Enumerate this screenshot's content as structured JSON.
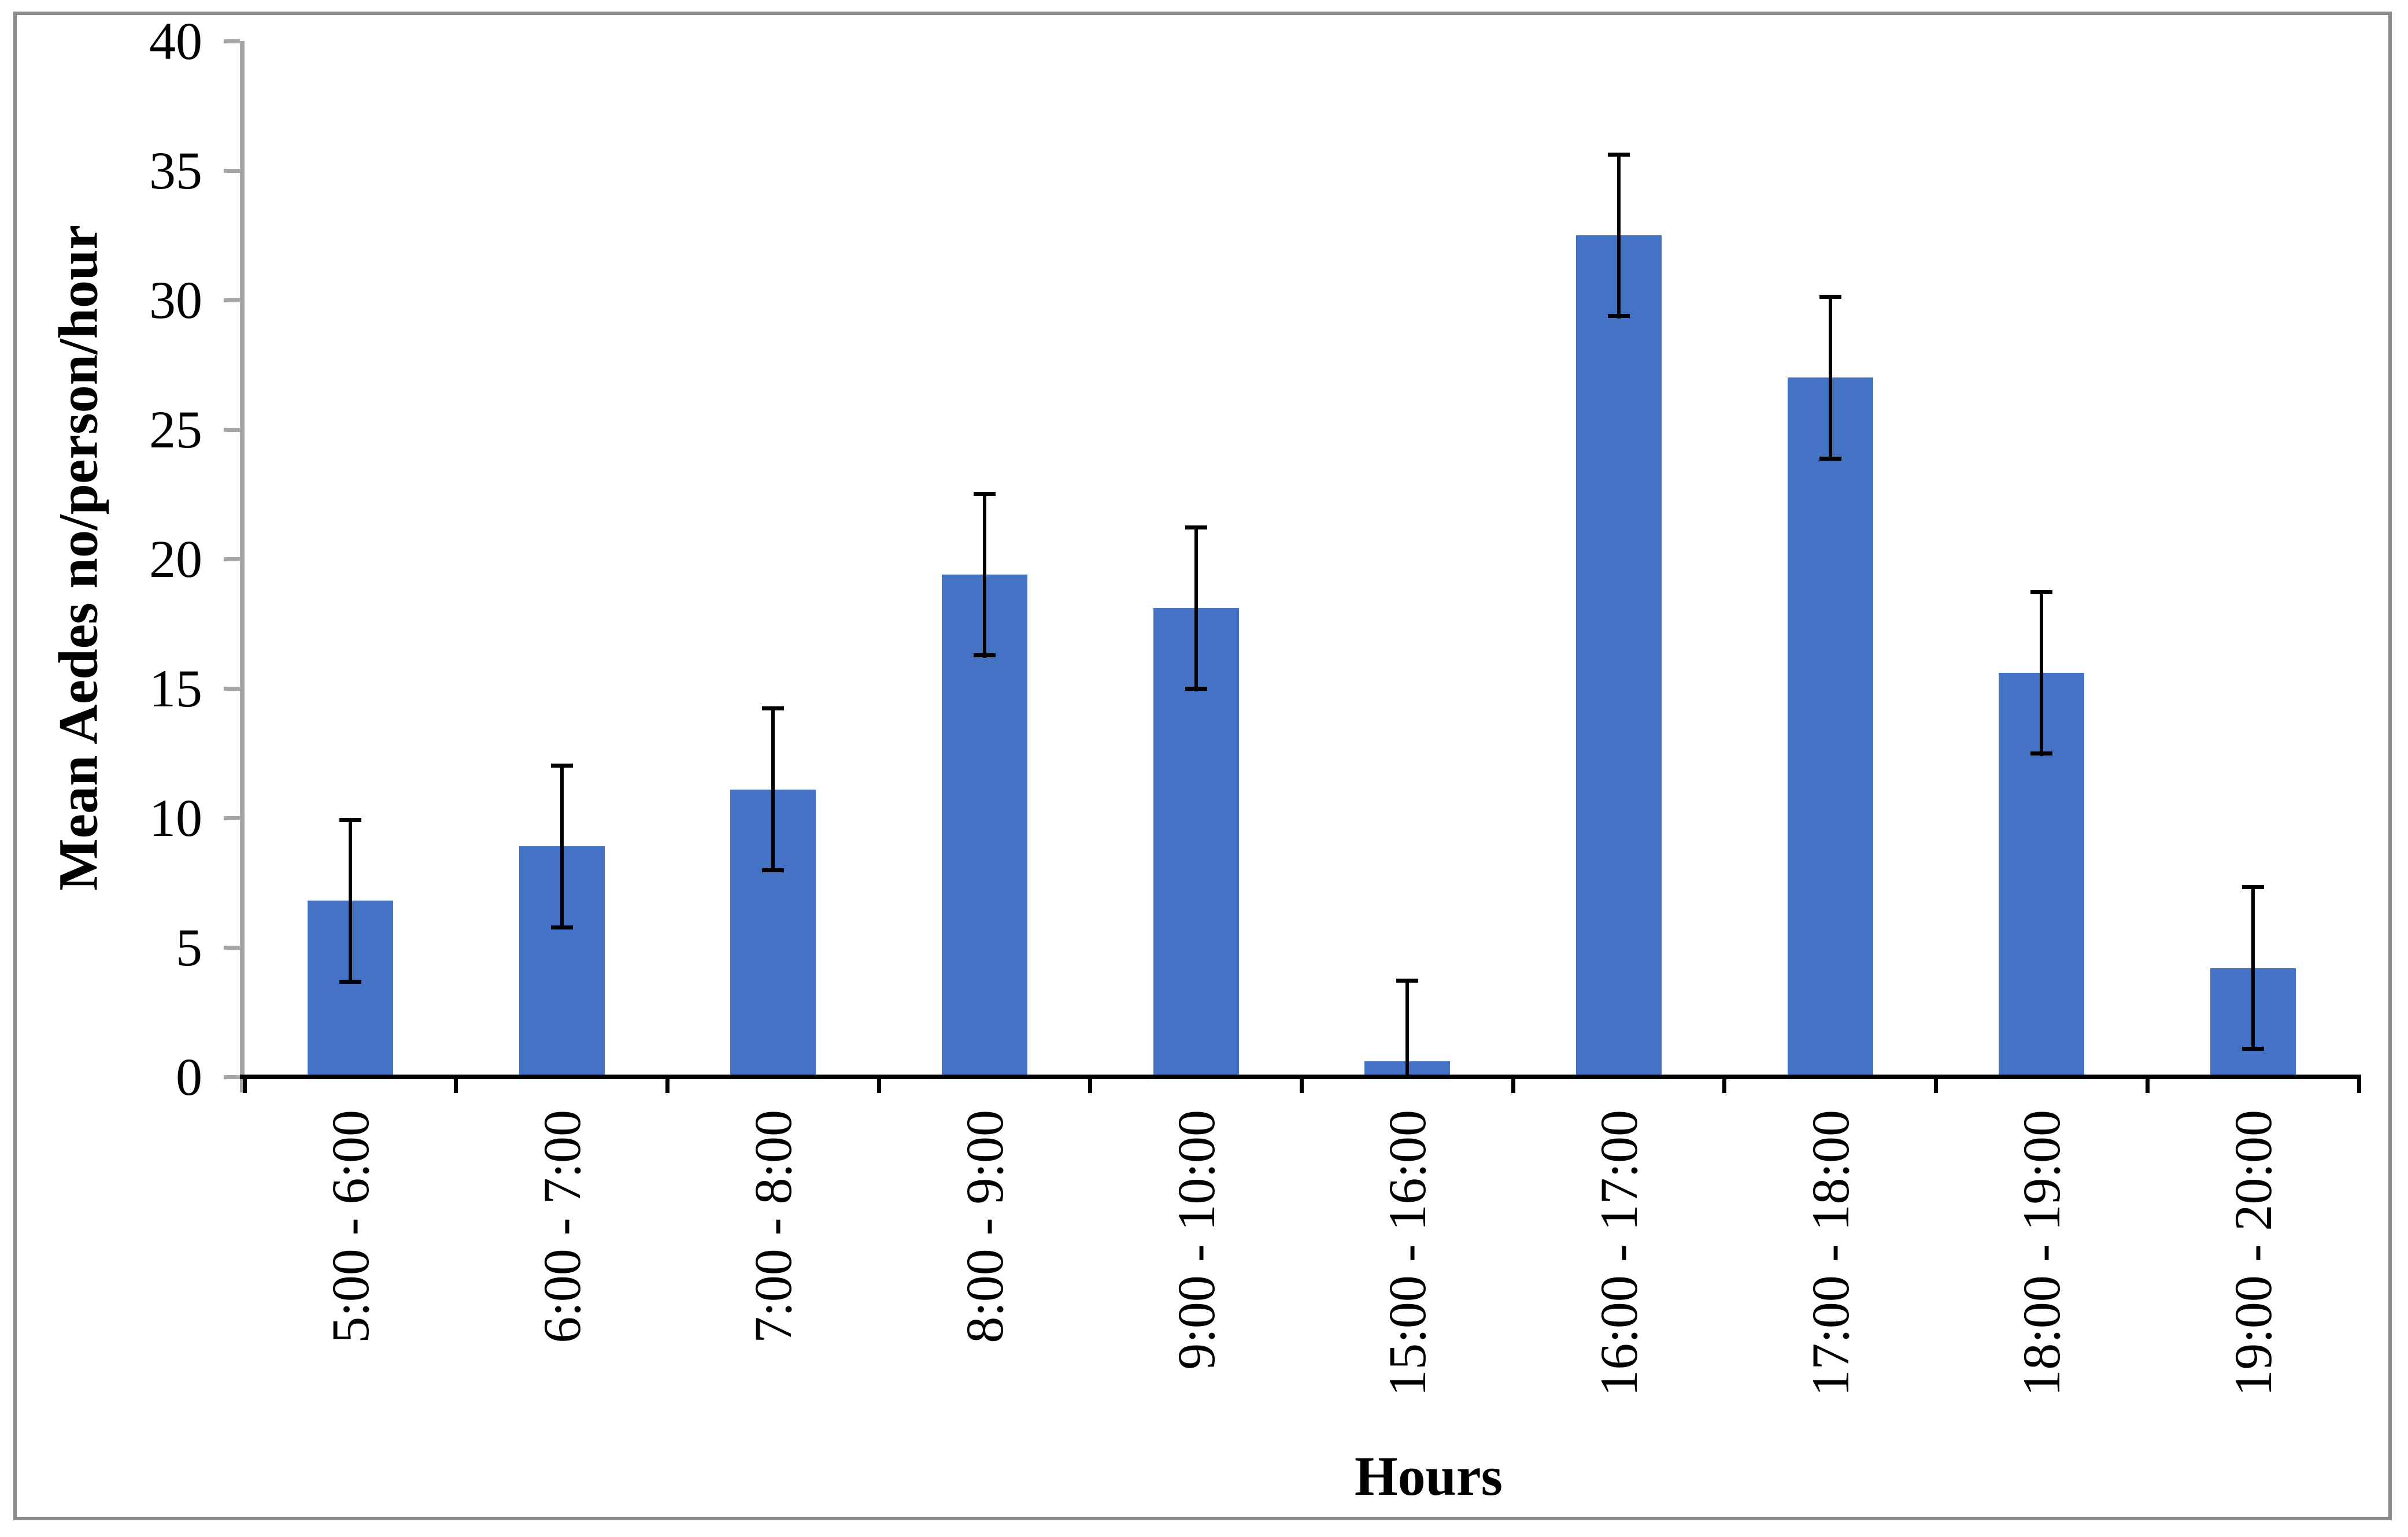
{
  "figure": {
    "border_color": "#8C8C8C",
    "background": "#FFFFFF"
  },
  "chart_data": {
    "type": "bar",
    "title": "",
    "xlabel": "Hours",
    "ylabel": "Mean Aedes no/person/hour",
    "categories": [
      "5:00 - 6:00",
      "6:00 - 7:00",
      "7:00 - 8:00",
      "8:00 - 9:00",
      "9:00 - 10:00",
      "15:00 - 16:00",
      "16:00 - 17:00",
      "17:00 - 18:00",
      "18:00 - 19:00",
      "19:00 - 20:00"
    ],
    "values": [
      6.8,
      8.9,
      11.1,
      19.4,
      18.1,
      0.6,
      32.5,
      27.0,
      15.6,
      4.2
    ],
    "error_bars": [
      3.2,
      3.2,
      3.2,
      3.2,
      3.2,
      3.2,
      3.2,
      3.2,
      3.2,
      3.2
    ],
    "ylim": [
      0,
      40
    ],
    "y_ticks": [
      0,
      5,
      10,
      15,
      20,
      25,
      30,
      35,
      40
    ],
    "grid": false,
    "legend_position": "none",
    "bar_color": "#4472C4",
    "error_color": "#000000",
    "y_axis_color": "#A6A6A6",
    "x_axis_color": "#000000"
  }
}
